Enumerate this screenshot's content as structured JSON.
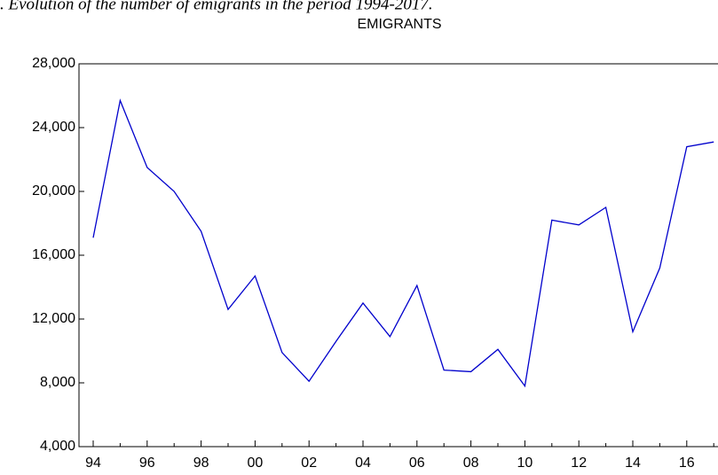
{
  "chart_data": {
    "type": "line",
    "caption": ". Evolution of the number of emigrants in the period 1994-2017.",
    "title": "EMIGRANTS",
    "categories": [
      "94",
      null,
      "96",
      null,
      "98",
      null,
      "00",
      null,
      "02",
      null,
      "04",
      null,
      "06",
      null,
      "08",
      null,
      "10",
      null,
      "12",
      null,
      "14",
      null,
      "16",
      null
    ],
    "series": [
      {
        "name": "EMIGRANTS",
        "color": "#0000cc",
        "values": [
          17100,
          25700,
          21500,
          20000,
          17500,
          12600,
          14700,
          9900,
          8100,
          10600,
          13000,
          10900,
          14100,
          8800,
          8700,
          10100,
          7800,
          18200,
          17900,
          19000,
          11200,
          15200,
          22800,
          23100
        ]
      }
    ],
    "ylim": [
      4000,
      28000
    ],
    "yticks": [
      {
        "value": 4000,
        "label": "4,000"
      },
      {
        "value": 8000,
        "label": "8,000"
      },
      {
        "value": 12000,
        "label": "12,000"
      },
      {
        "value": 16000,
        "label": "16,000"
      },
      {
        "value": 20000,
        "label": "20,000"
      },
      {
        "value": 24000,
        "label": "24,000"
      },
      {
        "value": 28000,
        "label": "28,000"
      }
    ],
    "grid": false
  }
}
